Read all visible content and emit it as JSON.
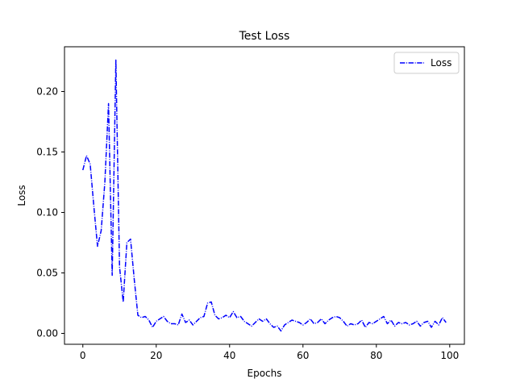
{
  "chart_data": {
    "type": "line",
    "title": "Test Loss",
    "xlabel": "Epochs",
    "ylabel": "Loss",
    "xlim": [
      -5,
      104
    ],
    "ylim": [
      -0.009,
      0.237
    ],
    "xticks": [
      0,
      20,
      40,
      60,
      80,
      100
    ],
    "yticks": [
      0.0,
      0.05,
      0.1,
      0.15,
      0.2
    ],
    "ytick_labels": [
      "0.00",
      "0.05",
      "0.10",
      "0.15",
      "0.20"
    ],
    "xtick_labels": [
      "0",
      "20",
      "40",
      "60",
      "80",
      "100"
    ],
    "legend_position": "top-right",
    "series": [
      {
        "name": "Loss",
        "color": "#0000ff",
        "linestyle": "dashdot",
        "x": [
          0,
          1,
          2,
          3,
          4,
          5,
          6,
          7,
          8,
          9,
          10,
          11,
          12,
          13,
          14,
          15,
          16,
          17,
          18,
          19,
          20,
          21,
          22,
          23,
          24,
          25,
          26,
          27,
          28,
          29,
          30,
          31,
          32,
          33,
          34,
          35,
          36,
          37,
          38,
          39,
          40,
          41,
          42,
          43,
          44,
          45,
          46,
          47,
          48,
          49,
          50,
          51,
          52,
          53,
          54,
          55,
          56,
          57,
          58,
          59,
          60,
          61,
          62,
          63,
          64,
          65,
          66,
          67,
          68,
          69,
          70,
          71,
          72,
          73,
          74,
          75,
          76,
          77,
          78,
          79,
          80,
          81,
          82,
          83,
          84,
          85,
          86,
          87,
          88,
          89,
          90,
          91,
          92,
          93,
          94,
          95,
          96,
          97,
          98,
          99
        ],
        "values": [
          0.135,
          0.147,
          0.14,
          0.105,
          0.072,
          0.085,
          0.125,
          0.19,
          0.048,
          0.226,
          0.055,
          0.026,
          0.075,
          0.078,
          0.045,
          0.015,
          0.013,
          0.014,
          0.011,
          0.005,
          0.01,
          0.012,
          0.014,
          0.01,
          0.008,
          0.008,
          0.007,
          0.016,
          0.009,
          0.011,
          0.007,
          0.01,
          0.013,
          0.014,
          0.025,
          0.026,
          0.015,
          0.012,
          0.013,
          0.015,
          0.013,
          0.018,
          0.013,
          0.014,
          0.01,
          0.008,
          0.006,
          0.009,
          0.012,
          0.01,
          0.012,
          0.008,
          0.005,
          0.006,
          0.002,
          0.007,
          0.009,
          0.011,
          0.01,
          0.009,
          0.007,
          0.009,
          0.012,
          0.008,
          0.009,
          0.012,
          0.008,
          0.011,
          0.013,
          0.014,
          0.013,
          0.01,
          0.006,
          0.008,
          0.007,
          0.008,
          0.011,
          0.005,
          0.009,
          0.008,
          0.01,
          0.012,
          0.014,
          0.008,
          0.011,
          0.006,
          0.009,
          0.008,
          0.009,
          0.007,
          0.008,
          0.01,
          0.006,
          0.009,
          0.01,
          0.005,
          0.01,
          0.007,
          0.013,
          0.009
        ]
      }
    ]
  }
}
